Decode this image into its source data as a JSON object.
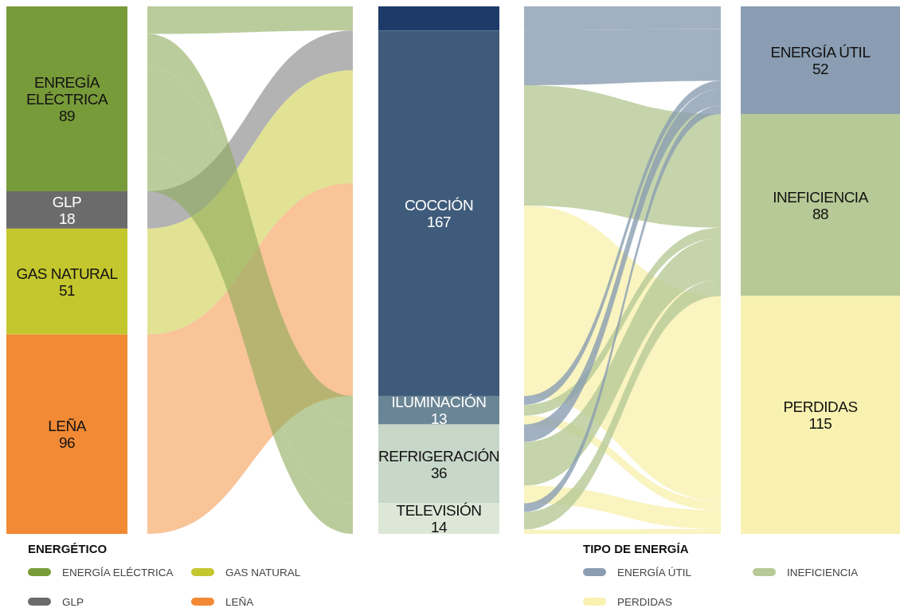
{
  "chart_data": [
    {
      "type": "other",
      "categories": [
        "ENREGÍA ELÉCTRICA",
        "GLP",
        "GAS NATURAL",
        "LEÑA"
      ],
      "data_labels": true,
      "legend": "bottom right",
      "legend_title": "ENERGÉTICO",
      "series": [
        {
          "name": "ENERGÍA ELÉCTRICA",
          "color": "#789b3a",
          "values": [
            89,
            null,
            null,
            null
          ]
        },
        {
          "name": "GAS NATURAL",
          "color": "#c4c62e",
          "values": [
            null,
            null,
            51,
            null
          ]
        },
        {
          "name": "GLP",
          "color": "#6b6b6b",
          "values": [
            null,
            18,
            null,
            null
          ]
        },
        {
          "name": "LEÑA",
          "color": "#f28a35",
          "values": [
            null,
            null,
            null,
            96
          ]
        }
      ]
    },
    {
      "type": "other",
      "categories": [
        null,
        "COCCIÓN",
        "ILUMINACIÓN",
        "REFRIGERACIÓN",
        "TELEVISIÓN"
      ],
      "data_labels": true,
      "values": [
        null,
        167,
        13,
        36,
        14
      ],
      "colors": [
        "#1d3a68",
        "#3f5b7b",
        "#6a8595",
        "#c7d7c8",
        "#dde7d8"
      ]
    },
    {
      "type": "other",
      "categories": [
        "ENERGÍA ÚTIL",
        "INEFICIENCIA",
        "PERDIDAS"
      ],
      "data_labels": true,
      "legend": "bottom left",
      "legend_title": "TIPO DE ENERGÍA",
      "series": [
        {
          "name": "ENERGÍA ÚTIL",
          "color": "#8a9db2",
          "values": [
            52,
            null,
            null
          ]
        },
        {
          "name": "INEFICIENCIA",
          "color": "#b7c996",
          "values": [
            null,
            88,
            null
          ]
        },
        {
          "name": "PERDIDAS",
          "color": "#f8f1b0",
          "values": [
            null,
            null,
            115
          ]
        }
      ]
    }
  ]
}
